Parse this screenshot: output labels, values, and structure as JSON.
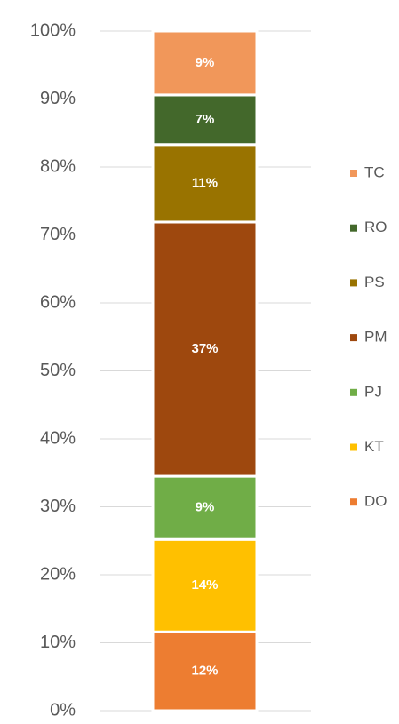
{
  "chart_data": {
    "type": "stacked_bar",
    "categories": [
      null
    ],
    "series": [
      {
        "name": "DO",
        "color": "#ed7d31",
        "values": [
          11.6
        ],
        "value_labels": [
          "12%"
        ]
      },
      {
        "name": "KT",
        "color": "#ffc000",
        "values": [
          13.6
        ],
        "value_labels": [
          "14%"
        ]
      },
      {
        "name": "PJ",
        "color": "#70ad47",
        "values": [
          9.3
        ],
        "value_labels": [
          "9%"
        ]
      },
      {
        "name": "PM",
        "color": "#9e480e",
        "values": [
          37.4
        ],
        "value_labels": [
          "37%"
        ]
      },
      {
        "name": "PS",
        "color": "#997300",
        "values": [
          11.4
        ],
        "value_labels": [
          "11%"
        ]
      },
      {
        "name": "RO",
        "color": "#43682b",
        "values": [
          7.3
        ],
        "value_labels": [
          "7%"
        ]
      },
      {
        "name": "TC",
        "color": "#f1975a",
        "values": [
          9.4
        ],
        "value_labels": [
          "9%"
        ]
      }
    ],
    "ylim": [
      0,
      100
    ],
    "yticks": [
      {
        "value": 0,
        "label": "0%"
      },
      {
        "value": 10,
        "label": "10%"
      },
      {
        "value": 20,
        "label": "20%"
      },
      {
        "value": 30,
        "label": "30%"
      },
      {
        "value": 40,
        "label": "40%"
      },
      {
        "value": 50,
        "label": "50%"
      },
      {
        "value": 60,
        "label": "60%"
      },
      {
        "value": 70,
        "label": "70%"
      },
      {
        "value": 80,
        "label": "80%"
      },
      {
        "value": 90,
        "label": "90%"
      },
      {
        "value": 100,
        "label": "100%"
      }
    ],
    "grid": true,
    "legend": "right"
  }
}
